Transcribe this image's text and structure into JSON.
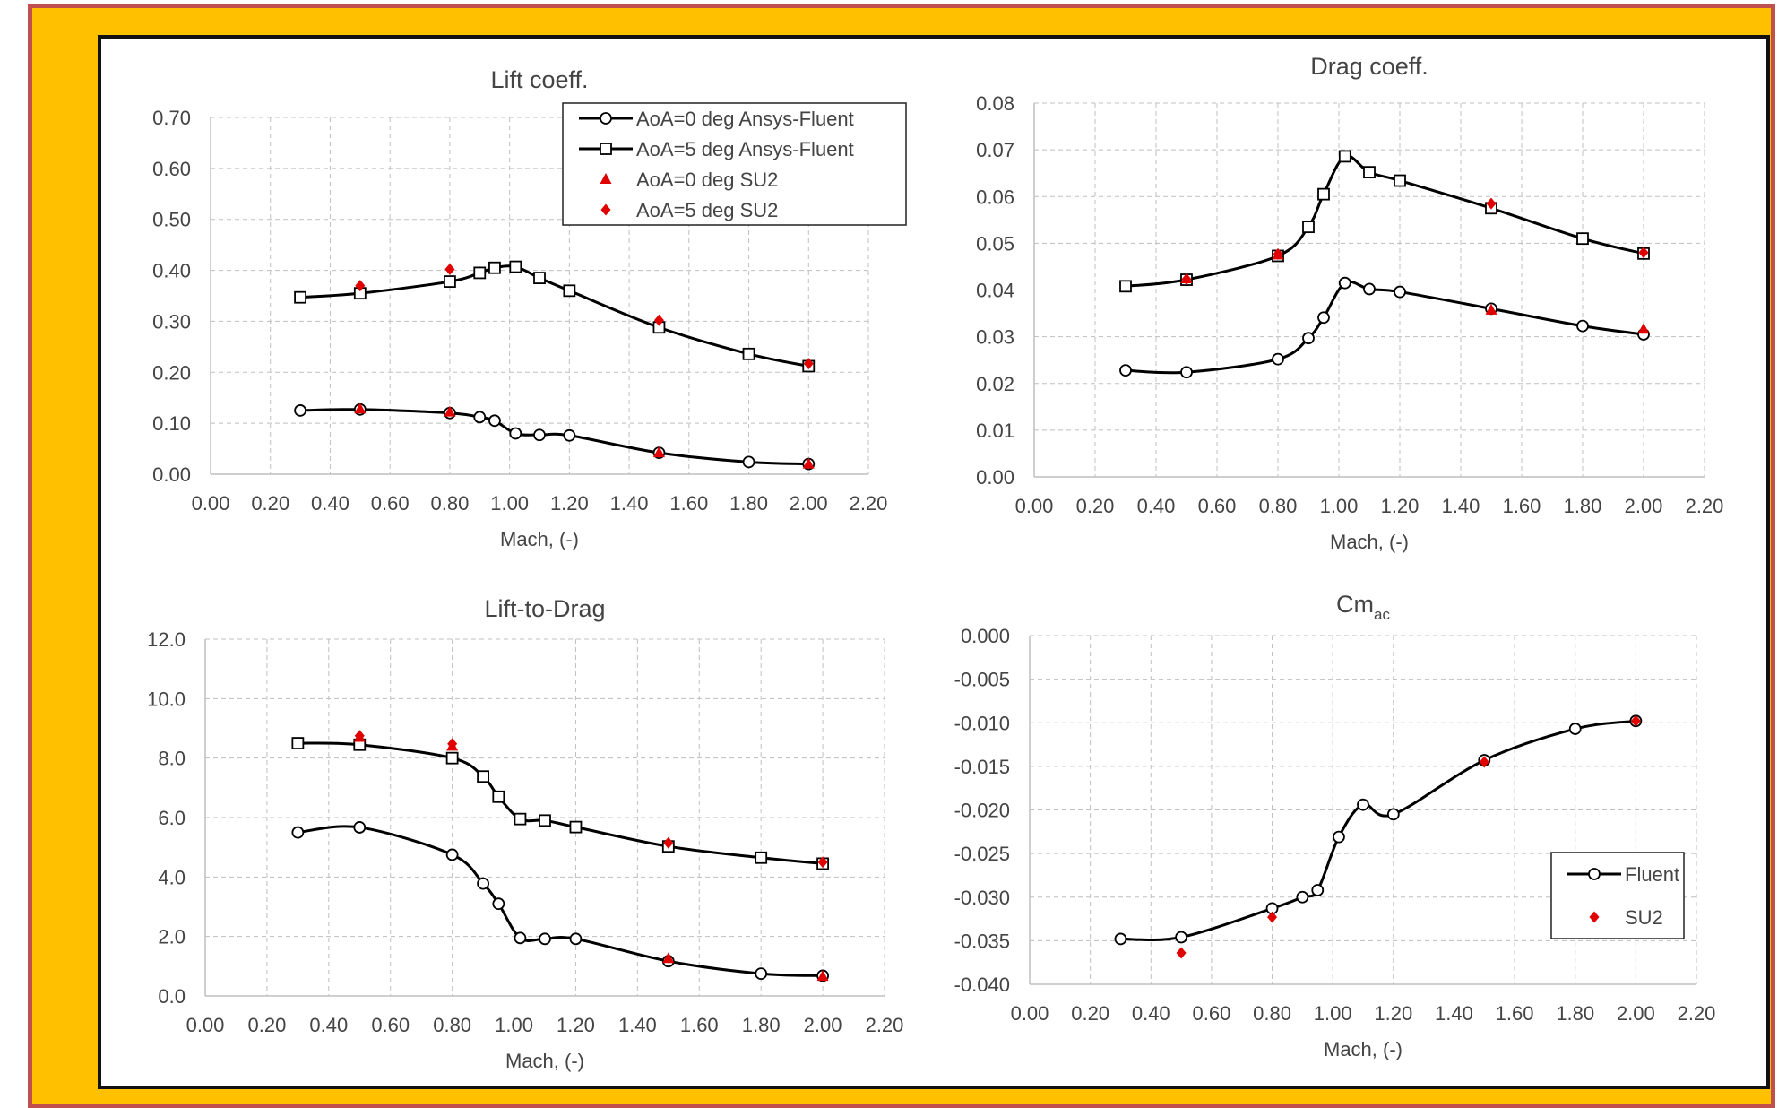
{
  "colors": {
    "frame_fill": "#FFC000",
    "frame_border": "#C0504D",
    "series_line": "#000000",
    "su2_marker": "#E00000",
    "grid": "#BFBFBF"
  },
  "chart_data": [
    {
      "id": "lift",
      "type": "line",
      "title": "Lift coeff.",
      "title_sub": "",
      "xlabel": "Mach, (-)",
      "ylabel": "",
      "xlim": [
        0,
        2.2
      ],
      "xstep": 0.2,
      "xdecimals": 2,
      "ylim": [
        0,
        0.7
      ],
      "ystep": 0.1,
      "ydecimals": 2,
      "grid": true,
      "legend_position": "top-right",
      "series": [
        {
          "name": "AoA=0 deg Ansys-Fluent",
          "marker": "circle",
          "line": true,
          "x": [
            0.3,
            0.5,
            0.8,
            0.9,
            0.95,
            1.02,
            1.1,
            1.2,
            1.5,
            1.8,
            2.0
          ],
          "y": [
            0.125,
            0.127,
            0.12,
            0.112,
            0.105,
            0.08,
            0.077,
            0.076,
            0.042,
            0.024,
            0.02
          ]
        },
        {
          "name": "AoA=5 deg Ansys-Fluent",
          "marker": "square",
          "line": true,
          "x": [
            0.3,
            0.5,
            0.8,
            0.9,
            0.95,
            1.02,
            1.1,
            1.2,
            1.5,
            1.8,
            2.0
          ],
          "y": [
            0.347,
            0.355,
            0.378,
            0.395,
            0.405,
            0.407,
            0.385,
            0.36,
            0.288,
            0.236,
            0.212
          ]
        },
        {
          "name": "AoA=0 deg SU2",
          "marker": "triangle",
          "line": false,
          "x": [
            0.5,
            0.8,
            1.5,
            2.0
          ],
          "y": [
            0.128,
            0.122,
            0.042,
            0.02
          ]
        },
        {
          "name": "AoA=5 deg SU2",
          "marker": "diamond",
          "line": false,
          "x": [
            0.5,
            0.8,
            1.5,
            2.0
          ],
          "y": [
            0.37,
            0.402,
            0.302,
            0.217
          ]
        }
      ]
    },
    {
      "id": "drag",
      "type": "line",
      "title": "Drag coeff.",
      "title_sub": "",
      "xlabel": "Mach, (-)",
      "ylabel": "",
      "xlim": [
        0,
        2.2
      ],
      "xstep": 0.2,
      "xdecimals": 2,
      "ylim": [
        0,
        0.08
      ],
      "ystep": 0.01,
      "ydecimals": 2,
      "grid": true,
      "legend_position": "none",
      "series": [
        {
          "name": "",
          "marker": "circle",
          "line": true,
          "x": [
            0.3,
            0.5,
            0.8,
            0.9,
            0.95,
            1.02,
            1.1,
            1.2,
            1.5,
            1.8,
            2.0
          ],
          "y": [
            0.0228,
            0.0224,
            0.0252,
            0.0297,
            0.0341,
            0.0415,
            0.0402,
            0.0396,
            0.036,
            0.0323,
            0.0305
          ]
        },
        {
          "name": "",
          "marker": "square",
          "line": true,
          "x": [
            0.3,
            0.5,
            0.8,
            0.9,
            0.95,
            1.02,
            1.1,
            1.2,
            1.5,
            1.8,
            2.0
          ],
          "y": [
            0.0408,
            0.0422,
            0.0473,
            0.0535,
            0.0605,
            0.0686,
            0.0652,
            0.0634,
            0.0575,
            0.051,
            0.0478
          ]
        },
        {
          "name": "",
          "marker": "triangle",
          "line": false,
          "x": [
            0.5,
            0.8,
            1.5,
            2.0
          ],
          "y": [
            0.0424,
            0.0475,
            0.0357,
            0.0316
          ]
        },
        {
          "name": "",
          "marker": "diamond",
          "line": false,
          "x": [
            0.5,
            0.8,
            1.5,
            2.0
          ],
          "y": [
            0.0423,
            0.0477,
            0.0585,
            0.048
          ]
        }
      ]
    },
    {
      "id": "ld",
      "type": "line",
      "title": "Lift-to-Drag",
      "title_sub": "",
      "xlabel": "Mach, (-)",
      "ylabel": "",
      "xlim": [
        0,
        2.2
      ],
      "xstep": 0.2,
      "xdecimals": 2,
      "ylim": [
        0,
        12
      ],
      "ystep": 2,
      "ydecimals": 1,
      "grid": true,
      "legend_position": "none",
      "series": [
        {
          "name": "",
          "marker": "circle",
          "line": true,
          "x": [
            0.3,
            0.5,
            0.8,
            0.9,
            0.95,
            1.02,
            1.1,
            1.2,
            1.5,
            1.8,
            2.0
          ],
          "y": [
            5.5,
            5.67,
            4.75,
            3.78,
            3.1,
            1.95,
            1.92,
            1.92,
            1.17,
            0.75,
            0.68
          ]
        },
        {
          "name": "",
          "marker": "square",
          "line": true,
          "x": [
            0.3,
            0.5,
            0.8,
            0.9,
            0.95,
            1.02,
            1.1,
            1.2,
            1.5,
            1.8,
            2.0
          ],
          "y": [
            8.5,
            8.45,
            8.0,
            7.38,
            6.7,
            5.95,
            5.9,
            5.68,
            5.03,
            4.65,
            4.45
          ]
        },
        {
          "name": "",
          "marker": "triangle",
          "line": false,
          "x": [
            0.5,
            0.8,
            1.5,
            2.0
          ],
          "y": [
            8.7,
            8.4,
            1.26,
            0.66
          ]
        },
        {
          "name": "",
          "marker": "diamond",
          "line": false,
          "x": [
            0.5,
            0.8,
            1.5,
            2.0
          ],
          "y": [
            8.75,
            8.48,
            5.15,
            4.5
          ]
        }
      ]
    },
    {
      "id": "cm",
      "type": "line",
      "title": "Cm",
      "title_sub": "ac",
      "xlabel": "Mach, (-)",
      "ylabel": "",
      "xlim": [
        0,
        2.2
      ],
      "xstep": 0.2,
      "xdecimals": 2,
      "ylim": [
        -0.04,
        0
      ],
      "ystep": 0.005,
      "ydecimals": 3,
      "grid": true,
      "legend_position": "bottom-right",
      "series": [
        {
          "name": "Fluent",
          "marker": "circle",
          "line": true,
          "x": [
            0.3,
            0.5,
            0.8,
            0.9,
            0.95,
            1.02,
            1.1,
            1.2,
            1.5,
            1.8,
            2.0
          ],
          "y": [
            -0.0348,
            -0.0346,
            -0.0313,
            -0.03,
            -0.0292,
            -0.0231,
            -0.0194,
            -0.0205,
            -0.0143,
            -0.0107,
            -0.0098
          ]
        },
        {
          "name": "SU2",
          "marker": "diamond",
          "line": false,
          "x": [
            0.5,
            0.8,
            1.5,
            2.0
          ],
          "y": [
            -0.0364,
            -0.0323,
            -0.0145,
            -0.0098
          ]
        }
      ]
    }
  ]
}
